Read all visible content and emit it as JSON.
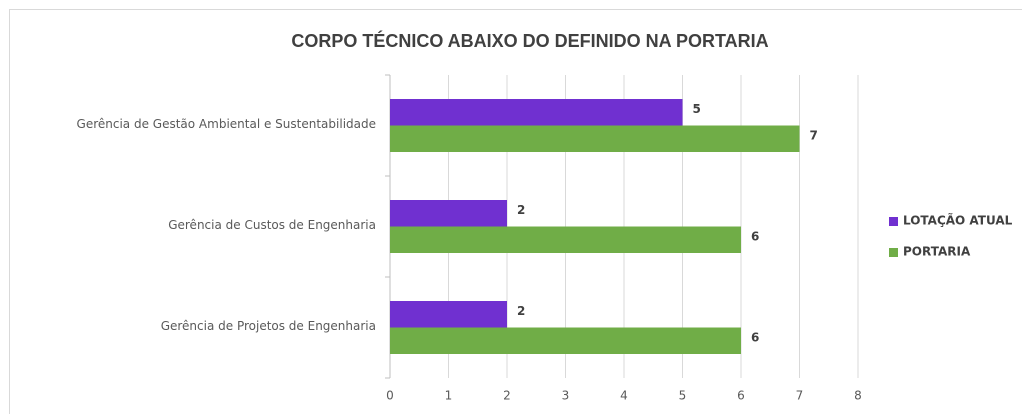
{
  "chart_data": {
    "type": "hbar",
    "title": "CORPO TÉCNICO ABAIXO DO DEFINIDO NA PORTARIA",
    "categories": [
      "Gerência de Gestão Ambiental e Sustentabilidade",
      "Gerência de Custos de Engenharia",
      "Gerência de Projetos de Engenharia"
    ],
    "series": [
      {
        "name": "LOTAÇÃO ATUAL",
        "color": "#7030d0",
        "values": [
          5,
          2,
          2
        ]
      },
      {
        "name": "PORTARIA",
        "color": "#70ad47",
        "values": [
          7,
          6,
          6
        ]
      }
    ],
    "xlim": [
      0,
      8
    ],
    "xticks": [
      0,
      1,
      2,
      3,
      4,
      5,
      6,
      7,
      8
    ],
    "grid": true,
    "legend": "right"
  }
}
